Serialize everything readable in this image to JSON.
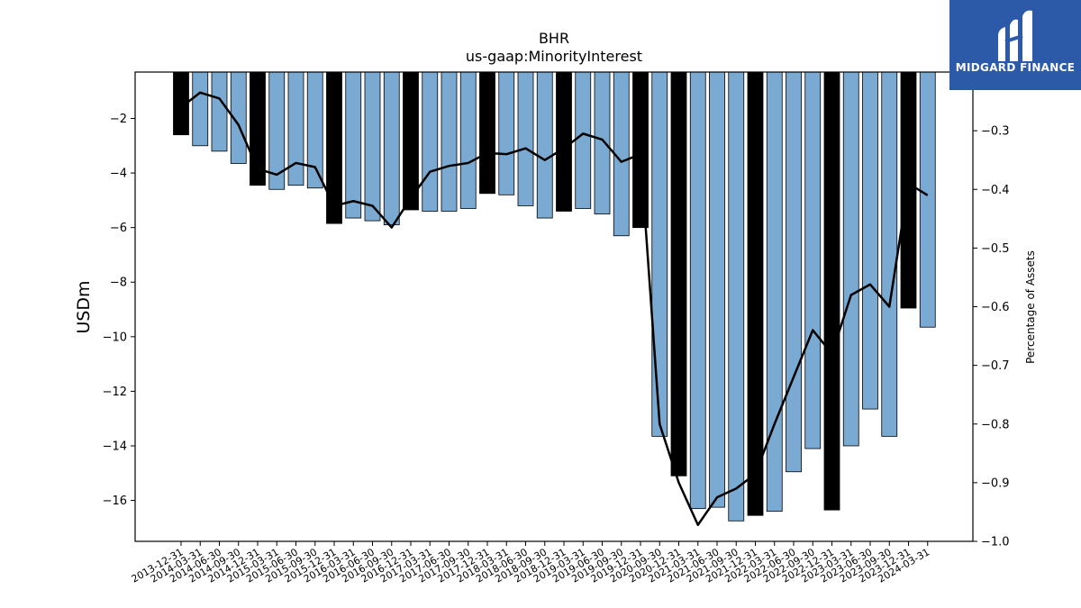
{
  "chart_data": {
    "type": "bar",
    "title": "BHR",
    "subtitle": "us-gaap:MinorityInterest",
    "ylabel": "USDm",
    "y2label": "Percentage of Assets",
    "ylim": [
      -17.5,
      -0.3
    ],
    "y2lim": [
      -1.0,
      -0.2
    ],
    "yticks": [
      -16,
      -14,
      -12,
      -10,
      -8,
      -6,
      -4,
      -2
    ],
    "y2ticks": [
      -1.0,
      -0.9,
      -0.8,
      -0.7,
      -0.6,
      -0.5,
      -0.4,
      -0.3
    ],
    "categories": [
      "2013-12-31",
      "2014-03-31",
      "2014-06-30",
      "2014-09-30",
      "2014-12-31",
      "2015-03-31",
      "2015-06-30",
      "2015-09-30",
      "2015-12-31",
      "2016-03-31",
      "2016-06-30",
      "2016-09-30",
      "2016-12-31",
      "2017-03-31",
      "2017-06-30",
      "2017-09-30",
      "2017-12-31",
      "2018-03-31",
      "2018-06-30",
      "2018-09-30",
      "2018-12-31",
      "2019-03-31",
      "2019-06-30",
      "2019-09-30",
      "2019-12-31",
      "2020-09-30",
      "2020-12-31",
      "2021-03-31",
      "2021-06-30",
      "2021-09-30",
      "2021-12-31",
      "2022-03-31",
      "2022-06-30",
      "2022-09-30",
      "2022-12-31",
      "2023-03-31",
      "2023-06-30",
      "2023-09-30",
      "2023-12-31",
      "2024-03-31"
    ],
    "series": [
      {
        "kind": "bar",
        "values": [
          -2.6,
          -3.0,
          -3.2,
          -3.65,
          -4.45,
          -4.6,
          -4.45,
          -4.55,
          -5.85,
          -5.65,
          -5.75,
          -5.9,
          -5.35,
          -5.4,
          -5.4,
          -5.3,
          -4.75,
          -4.8,
          -5.2,
          -5.65,
          -5.4,
          -5.3,
          -5.5,
          -6.3,
          -6.0,
          -13.65,
          -15.1,
          -16.3,
          -16.25,
          -16.75,
          -16.55,
          -16.4,
          -14.95,
          -14.1,
          -16.35,
          -14.0,
          -12.65,
          -13.65,
          -8.95,
          -9.65
        ],
        "colors": [
          "#000000",
          "#7aaad2",
          "#7aaad2",
          "#7aaad2",
          "#000000",
          "#7aaad2",
          "#7aaad2",
          "#7aaad2",
          "#000000",
          "#7aaad2",
          "#7aaad2",
          "#7aaad2",
          "#000000",
          "#7aaad2",
          "#7aaad2",
          "#7aaad2",
          "#000000",
          "#7aaad2",
          "#7aaad2",
          "#7aaad2",
          "#000000",
          "#7aaad2",
          "#7aaad2",
          "#7aaad2",
          "#000000",
          "#7aaad2",
          "#000000",
          "#7aaad2",
          "#7aaad2",
          "#7aaad2",
          "#000000",
          "#7aaad2",
          "#7aaad2",
          "#7aaad2",
          "#000000",
          "#7aaad2",
          "#7aaad2",
          "#7aaad2",
          "#000000",
          "#7aaad2"
        ]
      },
      {
        "kind": "line",
        "axis": "right",
        "color": "#000000",
        "values": [
          -0.26,
          -0.235,
          -0.245,
          -0.29,
          -0.365,
          -0.375,
          -0.355,
          -0.362,
          -0.428,
          -0.42,
          -0.428,
          -0.465,
          -0.415,
          -0.37,
          -0.36,
          -0.355,
          -0.338,
          -0.34,
          -0.33,
          -0.35,
          -0.33,
          -0.305,
          -0.315,
          -0.353,
          -0.34,
          -0.8,
          -0.9,
          -0.972,
          -0.925,
          -0.91,
          -0.885,
          -0.8,
          -0.72,
          -0.64,
          -0.68,
          -0.58,
          -0.562,
          -0.6,
          -0.39,
          -0.41
        ]
      }
    ],
    "grid": false
  },
  "logo": {
    "text": "MIDGARD FINANCE",
    "bg": "#2c5aa8"
  }
}
